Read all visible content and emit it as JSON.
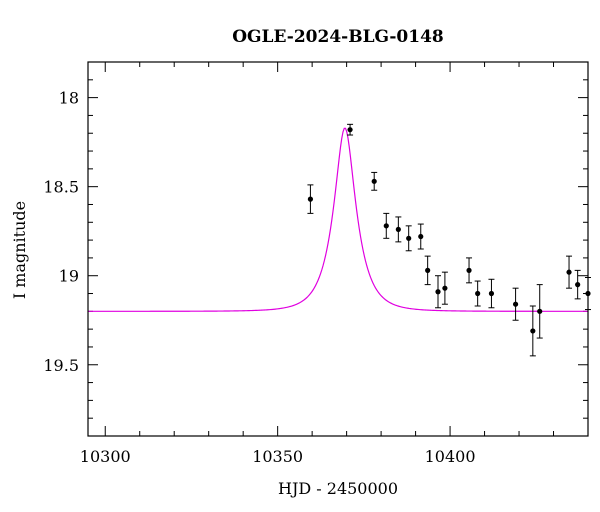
{
  "chart_data": {
    "type": "scatter",
    "title": "OGLE-2024-BLG-0148",
    "xlabel": "HJD - 2450000",
    "ylabel": "I magnitude",
    "xlim": [
      10295,
      10440
    ],
    "ylim": [
      19.9,
      17.8
    ],
    "y_inverted": true,
    "x_ticks": [
      10300,
      10350,
      10400
    ],
    "y_ticks": [
      18,
      18.5,
      19,
      19.5
    ],
    "x_minor_step": 10,
    "y_minor_step": 0.1,
    "colors": {
      "model": "#e000e0",
      "points": "#000000",
      "frame": "#000000"
    },
    "series": [
      {
        "name": "data",
        "points": [
          {
            "x": 10359.5,
            "y": 18.57,
            "err": 0.08
          },
          {
            "x": 10371.0,
            "y": 18.18,
            "err": 0.03
          },
          {
            "x": 10378.0,
            "y": 18.47,
            "err": 0.05
          },
          {
            "x": 10381.5,
            "y": 18.72,
            "err": 0.07
          },
          {
            "x": 10385.0,
            "y": 18.74,
            "err": 0.07
          },
          {
            "x": 10388.0,
            "y": 18.79,
            "err": 0.07
          },
          {
            "x": 10391.5,
            "y": 18.78,
            "err": 0.07
          },
          {
            "x": 10393.5,
            "y": 18.97,
            "err": 0.08
          },
          {
            "x": 10396.5,
            "y": 19.09,
            "err": 0.09
          },
          {
            "x": 10398.5,
            "y": 19.07,
            "err": 0.09
          },
          {
            "x": 10405.5,
            "y": 18.97,
            "err": 0.07
          },
          {
            "x": 10408.0,
            "y": 19.1,
            "err": 0.07
          },
          {
            "x": 10412.0,
            "y": 19.1,
            "err": 0.08
          },
          {
            "x": 10419.0,
            "y": 19.16,
            "err": 0.09
          },
          {
            "x": 10424.0,
            "y": 19.31,
            "err": 0.14
          },
          {
            "x": 10426.0,
            "y": 19.2,
            "err": 0.15
          },
          {
            "x": 10434.5,
            "y": 18.98,
            "err": 0.09
          },
          {
            "x": 10437.0,
            "y": 19.05,
            "err": 0.08
          },
          {
            "x": 10440.0,
            "y": 19.1,
            "err": 0.09
          }
        ]
      },
      {
        "name": "model",
        "type": "line",
        "model": {
          "t0": 10369.5,
          "tE": 6.0,
          "u0": 0.42,
          "peak_mag": 18.17,
          "baseline_mag": 19.2
        }
      }
    ]
  }
}
